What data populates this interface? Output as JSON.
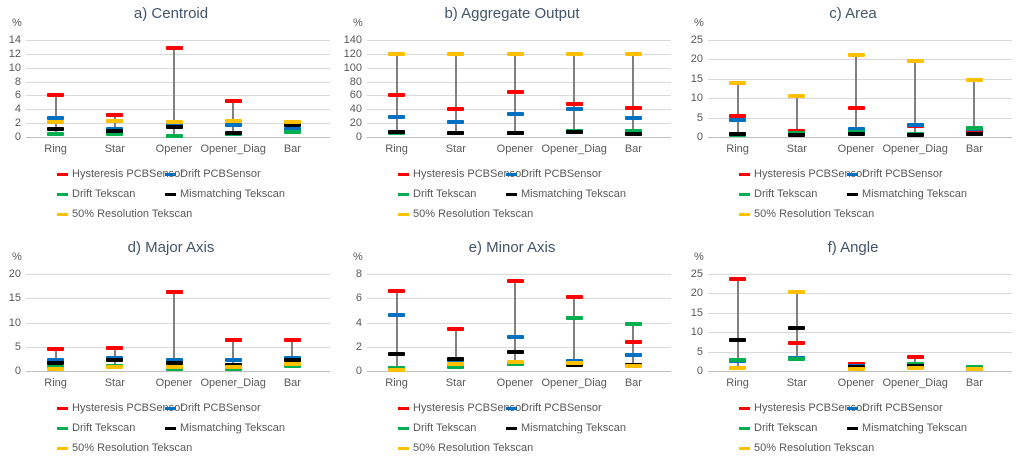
{
  "percent_label": "%",
  "colors": {
    "hysteresis_red": "#FF0000",
    "drift_pcb_blue": "#0070C0",
    "drift_tekscan_green": "#00B050",
    "mismatching_black": "#000000",
    "resolution_yellow": "#FFC000",
    "range_line_gray": "#808080",
    "gridline_gray": "#D9D9D9",
    "axis_line_gray": "#BFBFBF",
    "title_text": "#44546A",
    "axis_text": "#595959"
  },
  "legend_entries": [
    "Hysteresis PCBSensor",
    "Drift PCBSensor",
    "Drift Tekscan",
    "Mismatching Tekscan",
    "50% Resolution Tekscan"
  ],
  "categories": [
    "Ring",
    "Star",
    "Opener",
    "Opener_Diag",
    "Bar"
  ],
  "chart_data": [
    {
      "type": "scatter",
      "style": "high-low-dashes",
      "title": "a) Centroid",
      "ylabel": "%",
      "ylim": [
        0,
        14
      ],
      "ystep": 2,
      "grid": true,
      "legend_position": "bottom",
      "categories": [
        "Ring",
        "Star",
        "Opener",
        "Opener_Diag",
        "Bar"
      ],
      "series": [
        {
          "name": "Hysteresis PCBSensor",
          "color": "#FF0000",
          "values": [
            6.1,
            3.2,
            12.8,
            5.2,
            1.85
          ]
        },
        {
          "name": "Drift PCBSensor",
          "color": "#0070C0",
          "values": [
            2.8,
            1.2,
            1.9,
            1.8,
            1.1
          ]
        },
        {
          "name": "Drift Tekscan",
          "color": "#00B050",
          "values": [
            0.5,
            0.4,
            0.2,
            0.45,
            0.75
          ]
        },
        {
          "name": "Mismatching Tekscan",
          "color": "#000000",
          "values": [
            1.1,
            0.9,
            1.5,
            0.6,
            1.8
          ]
        },
        {
          "name": "50% Resolution Tekscan",
          "color": "#FFC000",
          "values": [
            2.1,
            2.3,
            2.2,
            2.3,
            2.1
          ]
        }
      ]
    },
    {
      "type": "scatter",
      "style": "high-low-dashes",
      "title": "b) Aggregate Output",
      "ylabel": "%",
      "ylim": [
        0,
        140
      ],
      "ystep": 20,
      "grid": true,
      "legend_position": "bottom",
      "categories": [
        "Ring",
        "Star",
        "Opener",
        "Opener_Diag",
        "Bar"
      ],
      "series": [
        {
          "name": "Hysteresis PCBSensor",
          "color": "#FF0000",
          "values": [
            60,
            40,
            65,
            48,
            42
          ]
        },
        {
          "name": "Drift PCBSensor",
          "color": "#0070C0",
          "values": [
            29,
            21,
            33,
            40,
            27
          ]
        },
        {
          "name": "Drift Tekscan",
          "color": "#00B050",
          "values": [
            6,
            6,
            6,
            9,
            8
          ]
        },
        {
          "name": "Mismatching Tekscan",
          "color": "#000000",
          "values": [
            7,
            6,
            6,
            7,
            5
          ]
        },
        {
          "name": "50% Resolution Tekscan",
          "color": "#FFC000",
          "values": [
            120,
            120,
            120,
            120,
            120
          ]
        }
      ]
    },
    {
      "type": "scatter",
      "style": "high-low-dashes",
      "title": "c) Area",
      "ylabel": "%",
      "ylim": [
        0,
        25
      ],
      "ystep": 5,
      "grid": true,
      "legend_position": "bottom",
      "categories": [
        "Ring",
        "Star",
        "Opener",
        "Opener_Diag",
        "Bar"
      ],
      "series": [
        {
          "name": "Hysteresis PCBSensor",
          "color": "#FF0000",
          "values": [
            5.5,
            1.6,
            7.5,
            2.8,
            1.6
          ]
        },
        {
          "name": "Drift PCBSensor",
          "color": "#0070C0",
          "values": [
            4.4,
            0.9,
            2.0,
            3.2,
            2.0
          ]
        },
        {
          "name": "Drift Tekscan",
          "color": "#00B050",
          "values": [
            0.5,
            1.0,
            1.3,
            0.7,
            2.4
          ]
        },
        {
          "name": "Mismatching Tekscan",
          "color": "#000000",
          "values": [
            0.8,
            0.5,
            0.9,
            0.4,
            0.9
          ]
        },
        {
          "name": "50% Resolution Tekscan",
          "color": "#FFC000",
          "values": [
            14.0,
            10.5,
            21.2,
            19.7,
            14.6
          ]
        }
      ]
    },
    {
      "type": "scatter",
      "style": "high-low-dashes",
      "title": "d) Major Axis",
      "ylabel": "%",
      "ylim": [
        0,
        20
      ],
      "ystep": 5,
      "grid": true,
      "legend_position": "bottom",
      "categories": [
        "Ring",
        "Star",
        "Opener",
        "Opener_Diag",
        "Bar"
      ],
      "series": [
        {
          "name": "Hysteresis PCBSensor",
          "color": "#FF0000",
          "values": [
            4.6,
            4.7,
            16.2,
            6.3,
            6.3
          ]
        },
        {
          "name": "Drift PCBSensor",
          "color": "#0070C0",
          "values": [
            2.3,
            2.6,
            2.3,
            2.2,
            2.7
          ]
        },
        {
          "name": "Drift Tekscan",
          "color": "#00B050",
          "values": [
            0.9,
            1.1,
            0.4,
            0.5,
            1.0
          ]
        },
        {
          "name": "Mismatching Tekscan",
          "color": "#000000",
          "values": [
            1.6,
            2.2,
            1.6,
            1.2,
            2.2
          ]
        },
        {
          "name": "50% Resolution Tekscan",
          "color": "#FFC000",
          "values": [
            0.4,
            0.8,
            0.8,
            0.9,
            1.4
          ]
        }
      ]
    },
    {
      "type": "scatter",
      "style": "high-low-dashes",
      "title": "e) Minor Axis",
      "ylabel": "%",
      "ylim": [
        0,
        8
      ],
      "ystep": 2,
      "grid": true,
      "legend_position": "bottom",
      "categories": [
        "Ring",
        "Star",
        "Opener",
        "Opener_Diag",
        "Bar"
      ],
      "series": [
        {
          "name": "Hysteresis PCBSensor",
          "color": "#FF0000",
          "values": [
            6.6,
            3.5,
            7.4,
            6.1,
            2.4
          ]
        },
        {
          "name": "Drift PCBSensor",
          "color": "#0070C0",
          "values": [
            4.6,
            0.9,
            2.8,
            0.8,
            1.35
          ]
        },
        {
          "name": "Drift Tekscan",
          "color": "#00B050",
          "values": [
            0.25,
            0.3,
            0.6,
            4.4,
            3.9
          ]
        },
        {
          "name": "Mismatching Tekscan",
          "color": "#000000",
          "values": [
            1.4,
            1.0,
            1.6,
            0.5,
            0.5
          ]
        },
        {
          "name": "50% Resolution Tekscan",
          "color": "#FFC000",
          "values": [
            0.1,
            0.6,
            0.75,
            0.65,
            0.4
          ]
        }
      ]
    },
    {
      "type": "scatter",
      "style": "high-low-dashes",
      "title": "f) Angle",
      "ylabel": "%",
      "ylim": [
        0,
        25
      ],
      "ystep": 5,
      "grid": true,
      "legend_position": "bottom",
      "categories": [
        "Ring",
        "Star",
        "Opener",
        "Opener_Diag",
        "Bar"
      ],
      "series": [
        {
          "name": "Hysteresis PCBSensor",
          "color": "#FF0000",
          "values": [
            23.7,
            7.2,
            1.9,
            3.5,
            0.9
          ]
        },
        {
          "name": "Drift PCBSensor",
          "color": "#0070C0",
          "values": [
            2.7,
            3.3,
            1.4,
            1.5,
            0.8
          ]
        },
        {
          "name": "Drift Tekscan",
          "color": "#00B050",
          "values": [
            2.9,
            3.0,
            0.7,
            1.7,
            1.0
          ]
        },
        {
          "name": "Mismatching Tekscan",
          "color": "#000000",
          "values": [
            8.0,
            11.2,
            1.0,
            1.3,
            0.6
          ]
        },
        {
          "name": "50% Resolution Tekscan",
          "color": "#FFC000",
          "values": [
            0.7,
            20.3,
            0.5,
            0.8,
            0.4
          ]
        }
      ]
    }
  ]
}
